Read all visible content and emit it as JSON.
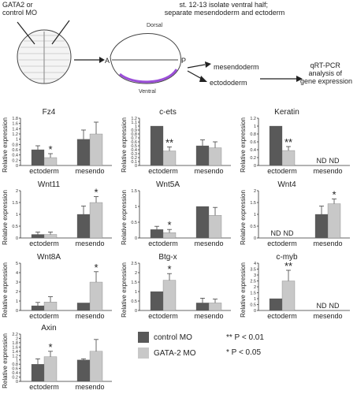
{
  "schematic": {
    "left_label": "GATA2 or\ncontrol MO",
    "top_label": "st. 12-13 isolate ventral half;\nseparate mesendoderm and ectoderm",
    "dorsal": "Dorsal",
    "ventral": "Ventral",
    "a": "A",
    "p": "P",
    "mesendoderm": "mesendoderm",
    "ectoderm": "ectododerm",
    "result": "qRT-PCR\nanalysis of\ngene expression"
  },
  "colors": {
    "control": "#595959",
    "gata2": "#c8c8c8",
    "axis": "#333333"
  },
  "legend": {
    "control": "control MO",
    "gata2": "GATA-2 MO",
    "p1": "** P < 0.01",
    "p2": "* P < 0.05"
  },
  "chart_data": [
    {
      "type": "bar",
      "title": "Fz4",
      "ylabel": "Relative expression",
      "categories": [
        "ectoderm",
        "mesendo"
      ],
      "ylim": [
        0,
        1.8
      ],
      "yticks": [
        "0",
        "0.2",
        "0.4",
        "0.6",
        "0.8",
        "1",
        "1.2",
        "1.4",
        "1.6",
        "1.8"
      ],
      "series": [
        {
          "name": "control MO",
          "values": [
            0.6,
            1.0
          ],
          "errors": [
            0.15,
            0.35
          ]
        },
        {
          "name": "GATA-2 MO",
          "values": [
            0.3,
            1.2
          ],
          "errors": [
            0.15,
            0.45
          ]
        }
      ],
      "marks": [
        {
          "cat": 0,
          "series": 1,
          "text": "*"
        }
      ],
      "nd": []
    },
    {
      "type": "bar",
      "title": "c-ets",
      "ylabel": "Relative expression",
      "categories": [
        "ectoderm",
        "mesendo"
      ],
      "ylim": [
        0,
        1.2
      ],
      "yticks": [
        "0",
        "0.1",
        "0.2",
        "0.3",
        "0.4",
        "0.5",
        "0.6",
        "0.7",
        "0.8",
        "0.9",
        "1",
        "1.1",
        "1.2"
      ],
      "series": [
        {
          "name": "control MO",
          "values": [
            1.0,
            0.5
          ],
          "errors": [
            0,
            0.15
          ]
        },
        {
          "name": "GATA-2 MO",
          "values": [
            0.37,
            0.45
          ],
          "errors": [
            0.1,
            0.15
          ]
        }
      ],
      "marks": [
        {
          "cat": 0,
          "series": 1,
          "text": "**"
        }
      ],
      "nd": []
    },
    {
      "type": "bar",
      "title": "Keratin",
      "ylabel": "Relative expression",
      "categories": [
        "ectoderm",
        "mesendo"
      ],
      "ylim": [
        0,
        1.2
      ],
      "yticks": [
        "0",
        "0.2",
        "0.4",
        "0.6",
        "0.8",
        "1",
        "1.2"
      ],
      "series": [
        {
          "name": "control MO",
          "values": [
            1.0,
            0
          ],
          "errors": [
            0,
            0
          ]
        },
        {
          "name": "GATA-2 MO",
          "values": [
            0.38,
            0
          ],
          "errors": [
            0.1,
            0
          ]
        }
      ],
      "marks": [
        {
          "cat": 0,
          "series": 1,
          "text": "**"
        }
      ],
      "nd": [
        {
          "cat": 1,
          "series": 0,
          "text": "ND"
        },
        {
          "cat": 1,
          "series": 1,
          "text": "ND"
        }
      ]
    },
    {
      "type": "bar",
      "title": "Wnt11",
      "ylabel": "Relative expression",
      "categories": [
        "ectoderm",
        "mesendo"
      ],
      "ylim": [
        0,
        2
      ],
      "yticks": [
        "0",
        "0.5",
        "1",
        "1.5",
        "2"
      ],
      "series": [
        {
          "name": "control MO",
          "values": [
            0.15,
            1.0
          ],
          "errors": [
            0.1,
            0.35
          ]
        },
        {
          "name": "GATA-2 MO",
          "values": [
            0.15,
            1.5
          ],
          "errors": [
            0.1,
            0.25
          ]
        }
      ],
      "marks": [
        {
          "cat": 1,
          "series": 1,
          "text": "*"
        }
      ],
      "nd": []
    },
    {
      "type": "bar",
      "title": "Wnt5A",
      "ylabel": "Relative expression",
      "categories": [
        "ectoderm",
        "mesendo"
      ],
      "ylim": [
        0,
        1.5
      ],
      "yticks": [
        "0",
        "0.5",
        "1",
        "1.5"
      ],
      "series": [
        {
          "name": "control MO",
          "values": [
            0.27,
            1.0
          ],
          "errors": [
            0.1,
            0
          ]
        },
        {
          "name": "GATA-2 MO",
          "values": [
            0.17,
            0.72
          ],
          "errors": [
            0.1,
            0.25
          ]
        }
      ],
      "marks": [
        {
          "cat": 0,
          "series": 1,
          "text": "*"
        }
      ],
      "nd": []
    },
    {
      "type": "bar",
      "title": "Wnt4",
      "ylabel": "Relative expression",
      "categories": [
        "ectoderm",
        "mesendo"
      ],
      "ylim": [
        0,
        2
      ],
      "yticks": [
        "0",
        "0.5",
        "1",
        "1.5",
        "2"
      ],
      "series": [
        {
          "name": "control MO",
          "values": [
            0,
            1.0
          ],
          "errors": [
            0,
            0.35
          ]
        },
        {
          "name": "GATA-2 MO",
          "values": [
            0,
            1.45
          ],
          "errors": [
            0,
            0.2
          ]
        }
      ],
      "marks": [
        {
          "cat": 1,
          "series": 1,
          "text": "*"
        }
      ],
      "nd": [
        {
          "cat": 0,
          "series": 0,
          "text": "ND"
        },
        {
          "cat": 0,
          "series": 1,
          "text": "ND"
        }
      ]
    },
    {
      "type": "bar",
      "title": "Wnt8A",
      "ylabel": "Relative expression",
      "categories": [
        "ectoderm",
        "mesendo"
      ],
      "ylim": [
        0,
        5
      ],
      "yticks": [
        "0",
        "1",
        "2",
        "3",
        "4",
        "5"
      ],
      "series": [
        {
          "name": "control MO",
          "values": [
            0.5,
            0.8
          ],
          "errors": [
            0.35,
            0
          ]
        },
        {
          "name": "GATA-2 MO",
          "values": [
            0.9,
            3.0
          ],
          "errors": [
            0.55,
            1.1
          ]
        }
      ],
      "marks": [
        {
          "cat": 1,
          "series": 1,
          "text": "*"
        }
      ],
      "nd": []
    },
    {
      "type": "bar",
      "title": "Btg-x",
      "ylabel": "Relative expression",
      "categories": [
        "ectoderm",
        "mesendo"
      ],
      "ylim": [
        0,
        2.5
      ],
      "yticks": [
        "0",
        "0.5",
        "1",
        "1.5",
        "2",
        "2.5"
      ],
      "series": [
        {
          "name": "control MO",
          "values": [
            1.0,
            0.4
          ],
          "errors": [
            0,
            0.25
          ]
        },
        {
          "name": "GATA-2 MO",
          "values": [
            1.6,
            0.4
          ],
          "errors": [
            0.35,
            0.2
          ]
        }
      ],
      "marks": [
        {
          "cat": 0,
          "series": 1,
          "text": "*"
        }
      ],
      "nd": []
    },
    {
      "type": "bar",
      "title": "c-myb",
      "ylabel": "Relative expression",
      "categories": [
        "ectoderm",
        "mesendo"
      ],
      "ylim": [
        0,
        4
      ],
      "yticks": [
        "0",
        "0.5",
        "1",
        "1.5",
        "2",
        "2.5",
        "3",
        "3.5",
        "4"
      ],
      "series": [
        {
          "name": "control MO",
          "values": [
            1.0,
            0
          ],
          "errors": [
            0,
            0
          ]
        },
        {
          "name": "GATA-2 MO",
          "values": [
            2.5,
            0
          ],
          "errors": [
            0.9,
            0
          ]
        }
      ],
      "marks": [
        {
          "cat": 0,
          "series": 1,
          "text": "**"
        }
      ],
      "nd": [
        {
          "cat": 1,
          "series": 0,
          "text": "ND"
        },
        {
          "cat": 1,
          "series": 1,
          "text": "ND"
        }
      ]
    },
    {
      "type": "bar",
      "title": "Axin",
      "ylabel": "Relative expression",
      "categories": [
        "ectoderm",
        "mesendo"
      ],
      "ylim": [
        0,
        2.2
      ],
      "yticks": [
        "0",
        "0.2",
        "0.4",
        "0.6",
        "0.8",
        "1",
        "1.2",
        "1.4",
        "1.6",
        "1.8",
        "2",
        "2.2"
      ],
      "series": [
        {
          "name": "control MO",
          "values": [
            0.8,
            1.0
          ],
          "errors": [
            0.25,
            0.05
          ]
        },
        {
          "name": "GATA-2 MO",
          "values": [
            1.15,
            1.4
          ],
          "errors": [
            0.25,
            0.55
          ]
        }
      ],
      "marks": [
        {
          "cat": 0,
          "series": 1,
          "text": "*"
        }
      ],
      "nd": []
    }
  ]
}
